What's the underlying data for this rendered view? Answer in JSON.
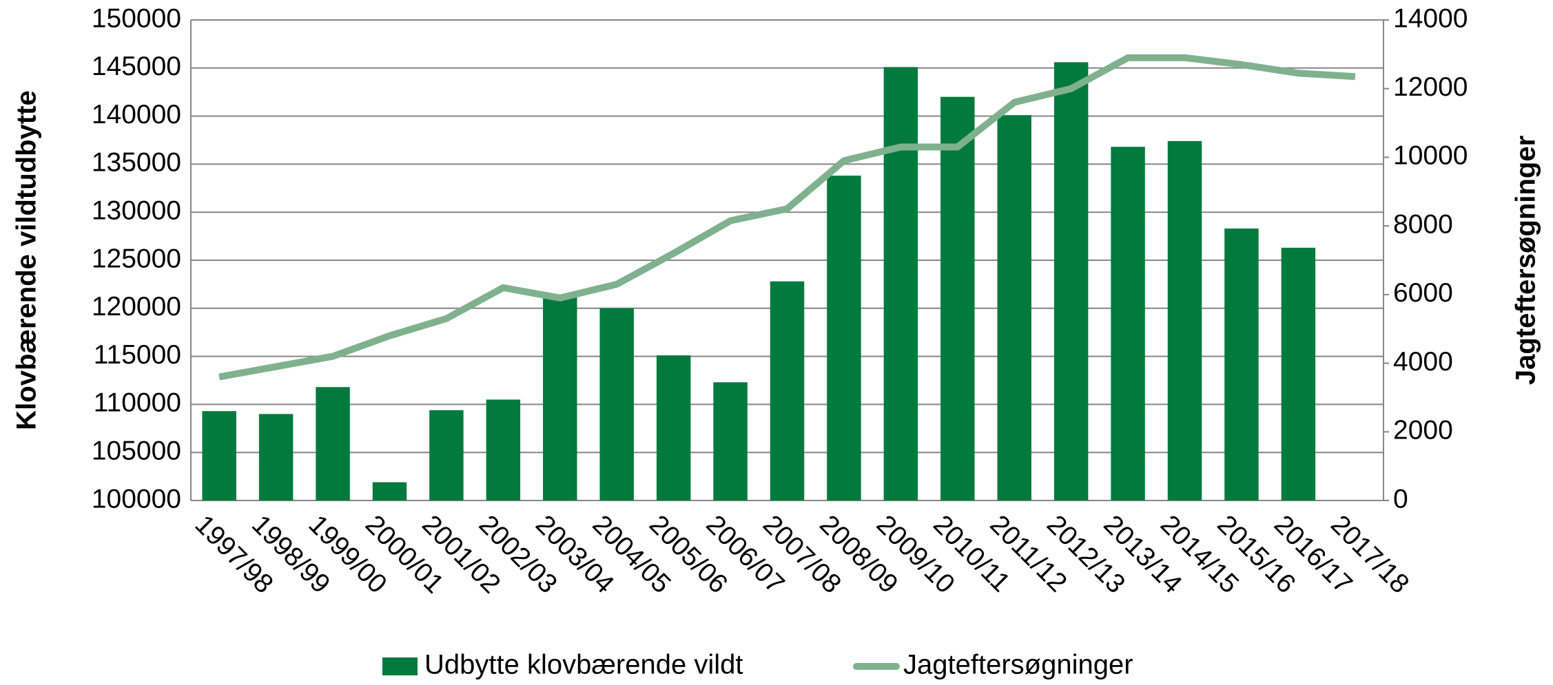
{
  "chart_data": {
    "type": "bar_line",
    "categories": [
      "1997/98",
      "1998/99",
      "1999/00",
      "2000/01",
      "2001/02",
      "2002/03",
      "2003/04",
      "2004/05",
      "2005/06",
      "2006/07",
      "2007/08",
      "2008/09",
      "2009/10",
      "2010/11",
      "2011/12",
      "2012/13",
      "2013/14",
      "2014/15",
      "2015/16",
      "2016/17",
      "2017/18"
    ],
    "y_label": "Klovbærende vildtudbytte",
    "y2_label": "Jagteftersøgninger",
    "series": [
      {
        "name": "Udbytte klovbærende vildt",
        "type": "bar",
        "color": "#007a3d",
        "values": [
          109300,
          109000,
          111800,
          101900,
          109400,
          110500,
          121300,
          120000,
          115100,
          112300,
          122800,
          133800,
          145100,
          142000,
          140100,
          145600,
          136800,
          137400,
          128300,
          126300,
          null
        ]
      },
      {
        "name": "Jagteftersøgninger",
        "type": "line",
        "axis": "y2",
        "color": "#80b18f",
        "values": [
          3600,
          3900,
          4200,
          4800,
          5300,
          6200,
          5900,
          6300,
          7200,
          8150,
          8500,
          9900,
          10300,
          10300,
          11600,
          12000,
          12900,
          12900,
          12700,
          12450,
          12350
        ]
      }
    ],
    "ylim": [
      100000,
      150000
    ],
    "yticks": [
      100000,
      105000,
      110000,
      115000,
      120000,
      125000,
      130000,
      135000,
      140000,
      145000,
      150000
    ],
    "y2lim": [
      0,
      14000
    ],
    "y2ticks": [
      0,
      2000,
      4000,
      6000,
      8000,
      10000,
      12000,
      14000
    ],
    "grid": true,
    "legend": "bottom"
  }
}
